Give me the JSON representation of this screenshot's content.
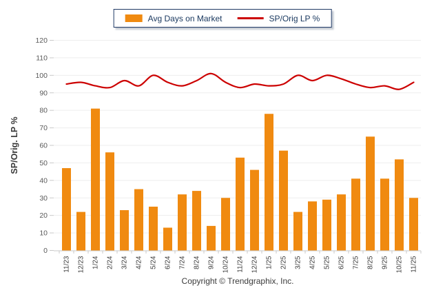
{
  "legend": {
    "items": [
      {
        "label": "Avg Days on Market",
        "type": "bar",
        "color": "#F08A10"
      },
      {
        "label": "SP/Orig LP %",
        "type": "line",
        "color": "#CC0000"
      }
    ]
  },
  "footer": {
    "copyright": "Copyright © Trendgraphix, Inc."
  },
  "colors": {
    "bar": "#F08A10",
    "line": "#CC0000",
    "grid": "#EDEDED",
    "axis": "#C9C9C9",
    "y_tick_label": "#595959",
    "x_tick_label": "#3D3D3D",
    "axis_title": "#3A3A3A",
    "legend_border": "#1F3864",
    "legend_text": "#17365D"
  },
  "chart_data": {
    "type": "bar",
    "title": "",
    "xlabel": "",
    "ylabel": "SP/Orig. LP %",
    "ylim": [
      0,
      120
    ],
    "ytick_step": 10,
    "grid": true,
    "legend_position": "top",
    "categories": [
      "11/23",
      "12/23",
      "1/24",
      "2/24",
      "3/24",
      "4/24",
      "5/24",
      "6/24",
      "7/24",
      "8/24",
      "9/24",
      "10/24",
      "11/24",
      "12/24",
      "1/25",
      "2/25",
      "3/25",
      "4/25",
      "5/25",
      "6/25",
      "7/25",
      "8/25",
      "9/25",
      "10/25",
      "11/25"
    ],
    "series": [
      {
        "name": "Avg Days on Market",
        "type": "bar",
        "color": "#F08A10",
        "values": [
          47,
          22,
          81,
          56,
          23,
          35,
          25,
          13,
          32,
          34,
          14,
          30,
          53,
          46,
          78,
          57,
          22,
          28,
          29,
          32,
          41,
          65,
          41,
          52,
          30
        ]
      },
      {
        "name": "SP/Orig LP %",
        "type": "line",
        "color": "#CC0000",
        "values": [
          95,
          96,
          94,
          93,
          97,
          94,
          100,
          96,
          94,
          97,
          101,
          96,
          93,
          95,
          94,
          95,
          100,
          97,
          100,
          98,
          95,
          93,
          94,
          92,
          96
        ]
      }
    ]
  }
}
